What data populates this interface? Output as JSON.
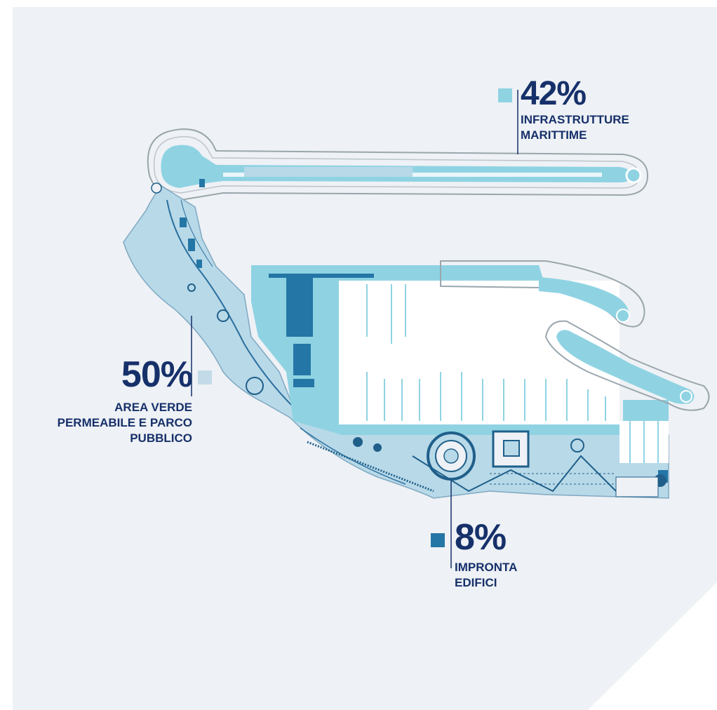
{
  "colors": {
    "background": "#eef1f5",
    "maritime_infrastructure": "#8fd3e3",
    "green_area": "#b8d9e8",
    "building_footprint": "#2476a6",
    "text": "#16306a"
  },
  "legend": {
    "maritime": {
      "percent": "42%",
      "line1": "INFRASTRUTTURE",
      "line2": "MARITTIME",
      "swatch_color": "#8fd3e3"
    },
    "green": {
      "percent": "50%",
      "line1": "AREA VERDE",
      "line2": "PERMEABILE E PARCO",
      "line3": "PUBBLICO",
      "swatch_color": "#c3dbe8"
    },
    "buildings": {
      "percent": "8%",
      "line1": "IMPRONTA",
      "line2": "EDIFICI",
      "swatch_color": "#2476a6"
    }
  }
}
